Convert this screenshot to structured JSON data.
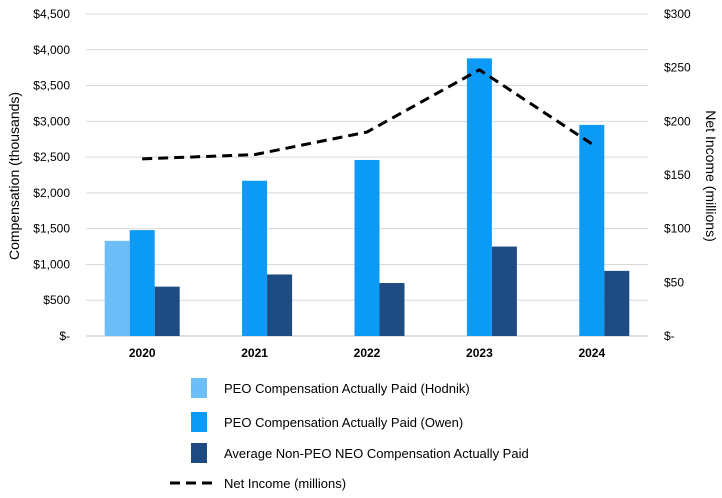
{
  "chart_data": {
    "type": "bar",
    "categories": [
      "2020",
      "2021",
      "2022",
      "2023",
      "2024"
    ],
    "series": [
      {
        "name": "PEO Compensation Actually Paid (Hodnik)",
        "axis": "left",
        "values": [
          1330,
          null,
          null,
          null,
          null
        ],
        "color": "#6CBDF8"
      },
      {
        "name": "PEO Compensation Actually Paid (Owen)",
        "axis": "left",
        "values": [
          1480,
          2170,
          2460,
          3880,
          2950
        ],
        "color": "#0C9AF7"
      },
      {
        "name": "Average Non-PEO NEO Compensation Actually Paid",
        "axis": "left",
        "values": [
          690,
          860,
          740,
          1250,
          910
        ],
        "color": "#1E4B82"
      }
    ],
    "line_series": {
      "name": "Net Income (millions)",
      "axis": "right",
      "values": [
        165,
        169,
        190,
        248,
        179
      ],
      "color": "#000000",
      "style": "dashed"
    },
    "ylabel": "Compensation (thousands)",
    "y2label": "Net Income (millions)",
    "ylim": [
      0,
      4500
    ],
    "y2lim": [
      0,
      300
    ],
    "y_ticks": [
      {
        "value": 0,
        "label": "$-"
      },
      {
        "value": 500,
        "label": "$500"
      },
      {
        "value": 1000,
        "label": "$1,000"
      },
      {
        "value": 1500,
        "label": "$1,500"
      },
      {
        "value": 2000,
        "label": "$2,000"
      },
      {
        "value": 2500,
        "label": "$2,500"
      },
      {
        "value": 3000,
        "label": "$3,000"
      },
      {
        "value": 3500,
        "label": "$3,500"
      },
      {
        "value": 4000,
        "label": "$4,000"
      },
      {
        "value": 4500,
        "label": "$4,500"
      }
    ],
    "y2_ticks": [
      {
        "value": 0,
        "label": "$-"
      },
      {
        "value": 50,
        "label": "$50"
      },
      {
        "value": 100,
        "label": "$100"
      },
      {
        "value": 150,
        "label": "$150"
      },
      {
        "value": 200,
        "label": "$200"
      },
      {
        "value": 250,
        "label": "$250"
      },
      {
        "value": 300,
        "label": "$300"
      }
    ],
    "grid": true,
    "legend_position": "bottom"
  }
}
